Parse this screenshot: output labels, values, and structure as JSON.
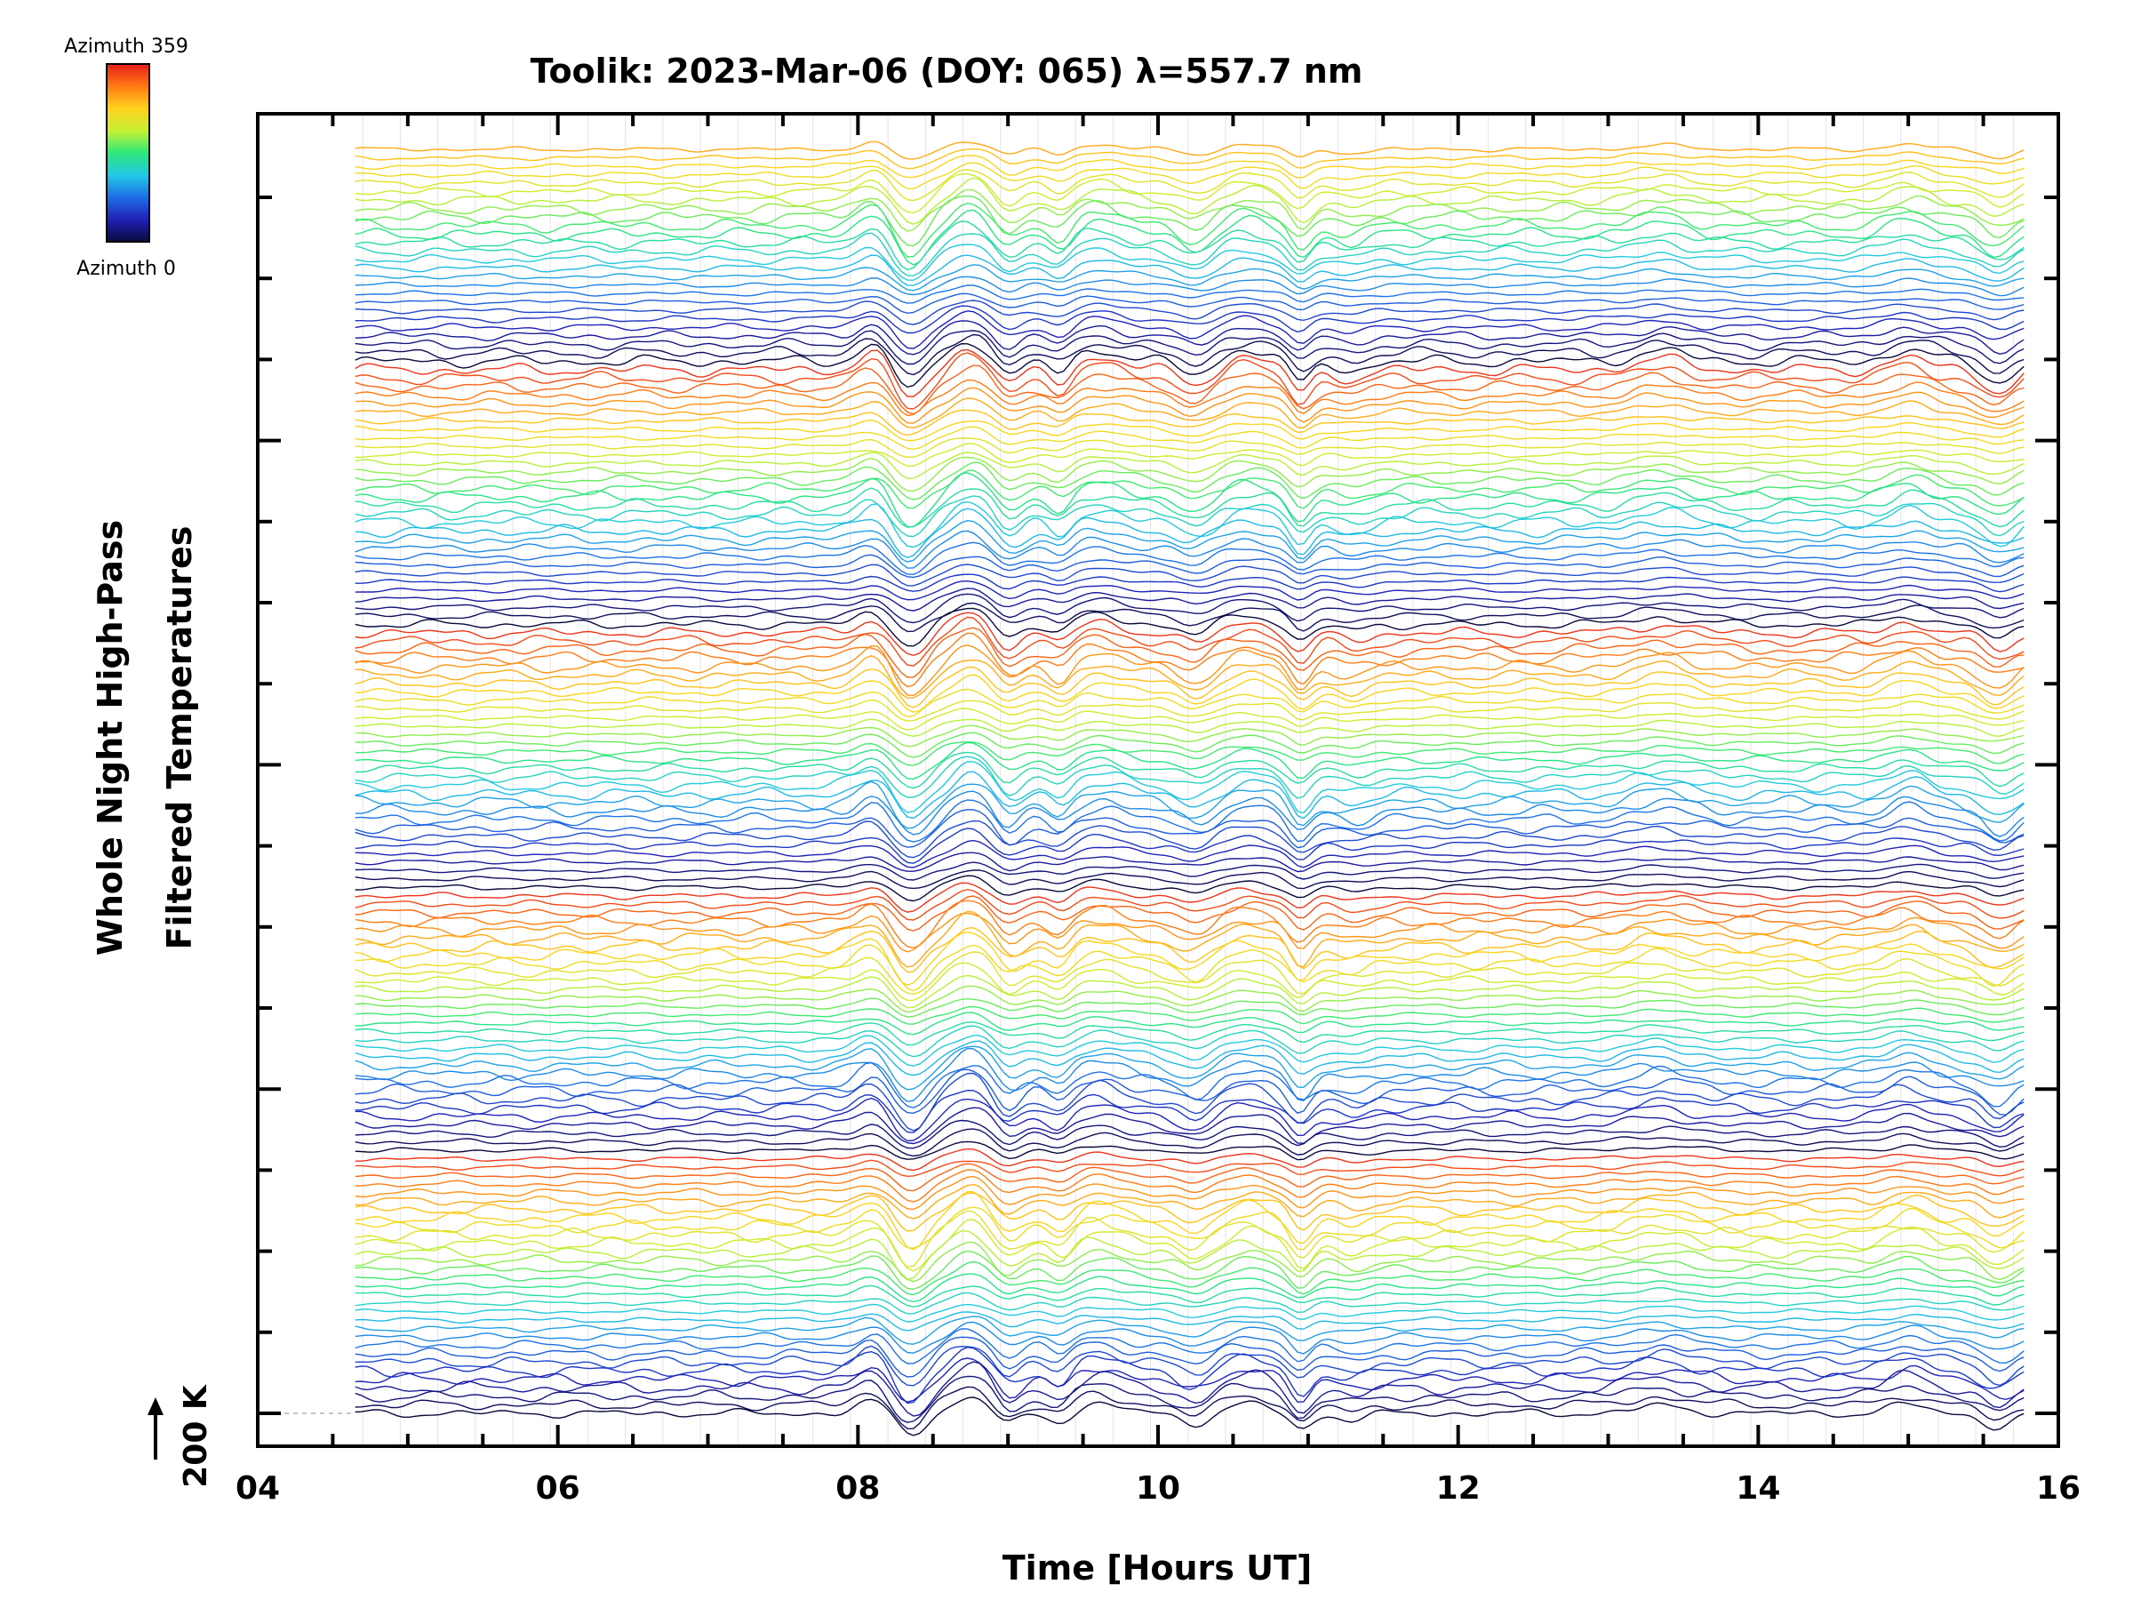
{
  "chart_data": {
    "type": "line",
    "title": "Toolik: 2023-Mar-06 (DOY: 065) λ=557.7 nm",
    "xlabel": "Time [Hours UT]",
    "ylabel_line1": "Whole Night High-Pass",
    "ylabel_line2": "Filtered Temperatures",
    "xlim": [
      4,
      16
    ],
    "x_tick_labels": [
      "04",
      "06",
      "08",
      "10",
      "12",
      "14",
      "16"
    ],
    "x_tick_values": [
      4,
      6,
      8,
      10,
      12,
      14,
      16
    ],
    "scale_bar_label": "200 K",
    "colorbar": {
      "top_label": "Azimuth 359",
      "bottom_label": "Azimuth 0",
      "colors": [
        "#0a0a3c",
        "#2020b8",
        "#1e6ee6",
        "#22c8e6",
        "#2ee87a",
        "#c8f032",
        "#ffd21e",
        "#ff7a14",
        "#e61e1e"
      ]
    },
    "data_time_range": [
      4.65,
      15.8
    ],
    "series_count": 150,
    "features": [
      {
        "x": 8.1,
        "amp": 0.6,
        "w": 0.1
      },
      {
        "x": 8.35,
        "amp": -1.0,
        "w": 0.1
      },
      {
        "x": 8.75,
        "amp": 0.8,
        "w": 0.12
      },
      {
        "x": 9.0,
        "amp": -0.6,
        "w": 0.08
      },
      {
        "x": 9.35,
        "amp": -0.5,
        "w": 0.07
      },
      {
        "x": 9.6,
        "amp": 0.45,
        "w": 0.15
      },
      {
        "x": 10.25,
        "amp": -0.5,
        "w": 0.1
      },
      {
        "x": 10.6,
        "amp": 0.45,
        "w": 0.15
      },
      {
        "x": 10.95,
        "amp": -0.85,
        "w": 0.07
      },
      {
        "x": 11.3,
        "amp": -0.3,
        "w": 0.1
      },
      {
        "x": 13.35,
        "amp": 0.35,
        "w": 0.18
      },
      {
        "x": 15.0,
        "amp": 0.45,
        "w": 0.12
      },
      {
        "x": 15.6,
        "amp": -0.7,
        "w": 0.1
      }
    ]
  }
}
